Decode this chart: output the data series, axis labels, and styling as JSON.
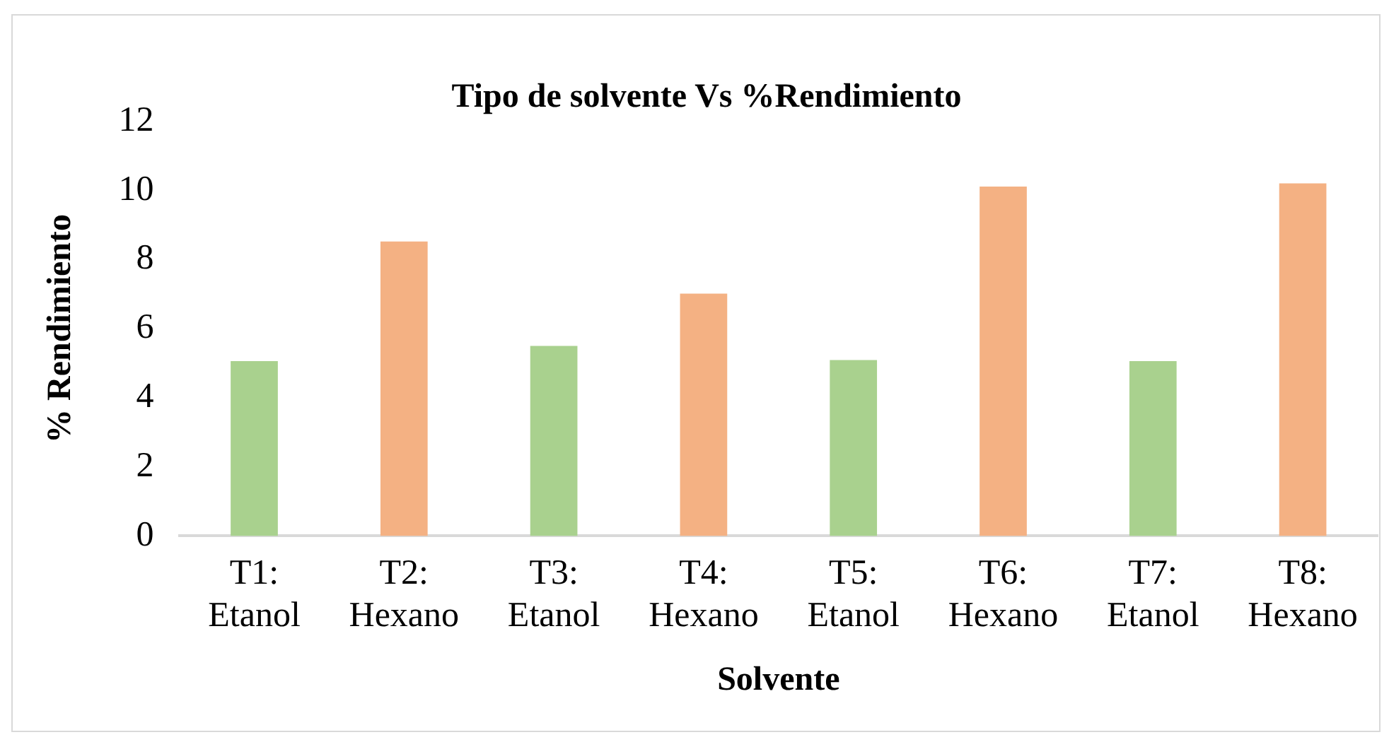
{
  "chart_data": {
    "type": "bar",
    "title": "Tipo de solvente Vs %Rendimiento",
    "xlabel": "Solvente",
    "ylabel": "% Rendimiento",
    "categories": [
      "T1: Etanol",
      "T2: Hexano",
      "T3: Etanol",
      "T4: Hexano",
      "T5: Etanol",
      "T6: Hexano",
      "T7: Etanol",
      "T8: Hexano"
    ],
    "values": [
      5.06,
      8.52,
      5.5,
      7.01,
      5.09,
      10.11,
      5.06,
      10.2
    ],
    "colors": [
      "#a9d18e",
      "#f4b183",
      "#a9d18e",
      "#f4b183",
      "#a9d18e",
      "#f4b183",
      "#a9d18e",
      "#f4b183"
    ],
    "ylim": [
      0,
      12
    ],
    "yticks": [
      0,
      2,
      4,
      6,
      8,
      10,
      12
    ],
    "grid": false,
    "legend": false
  }
}
